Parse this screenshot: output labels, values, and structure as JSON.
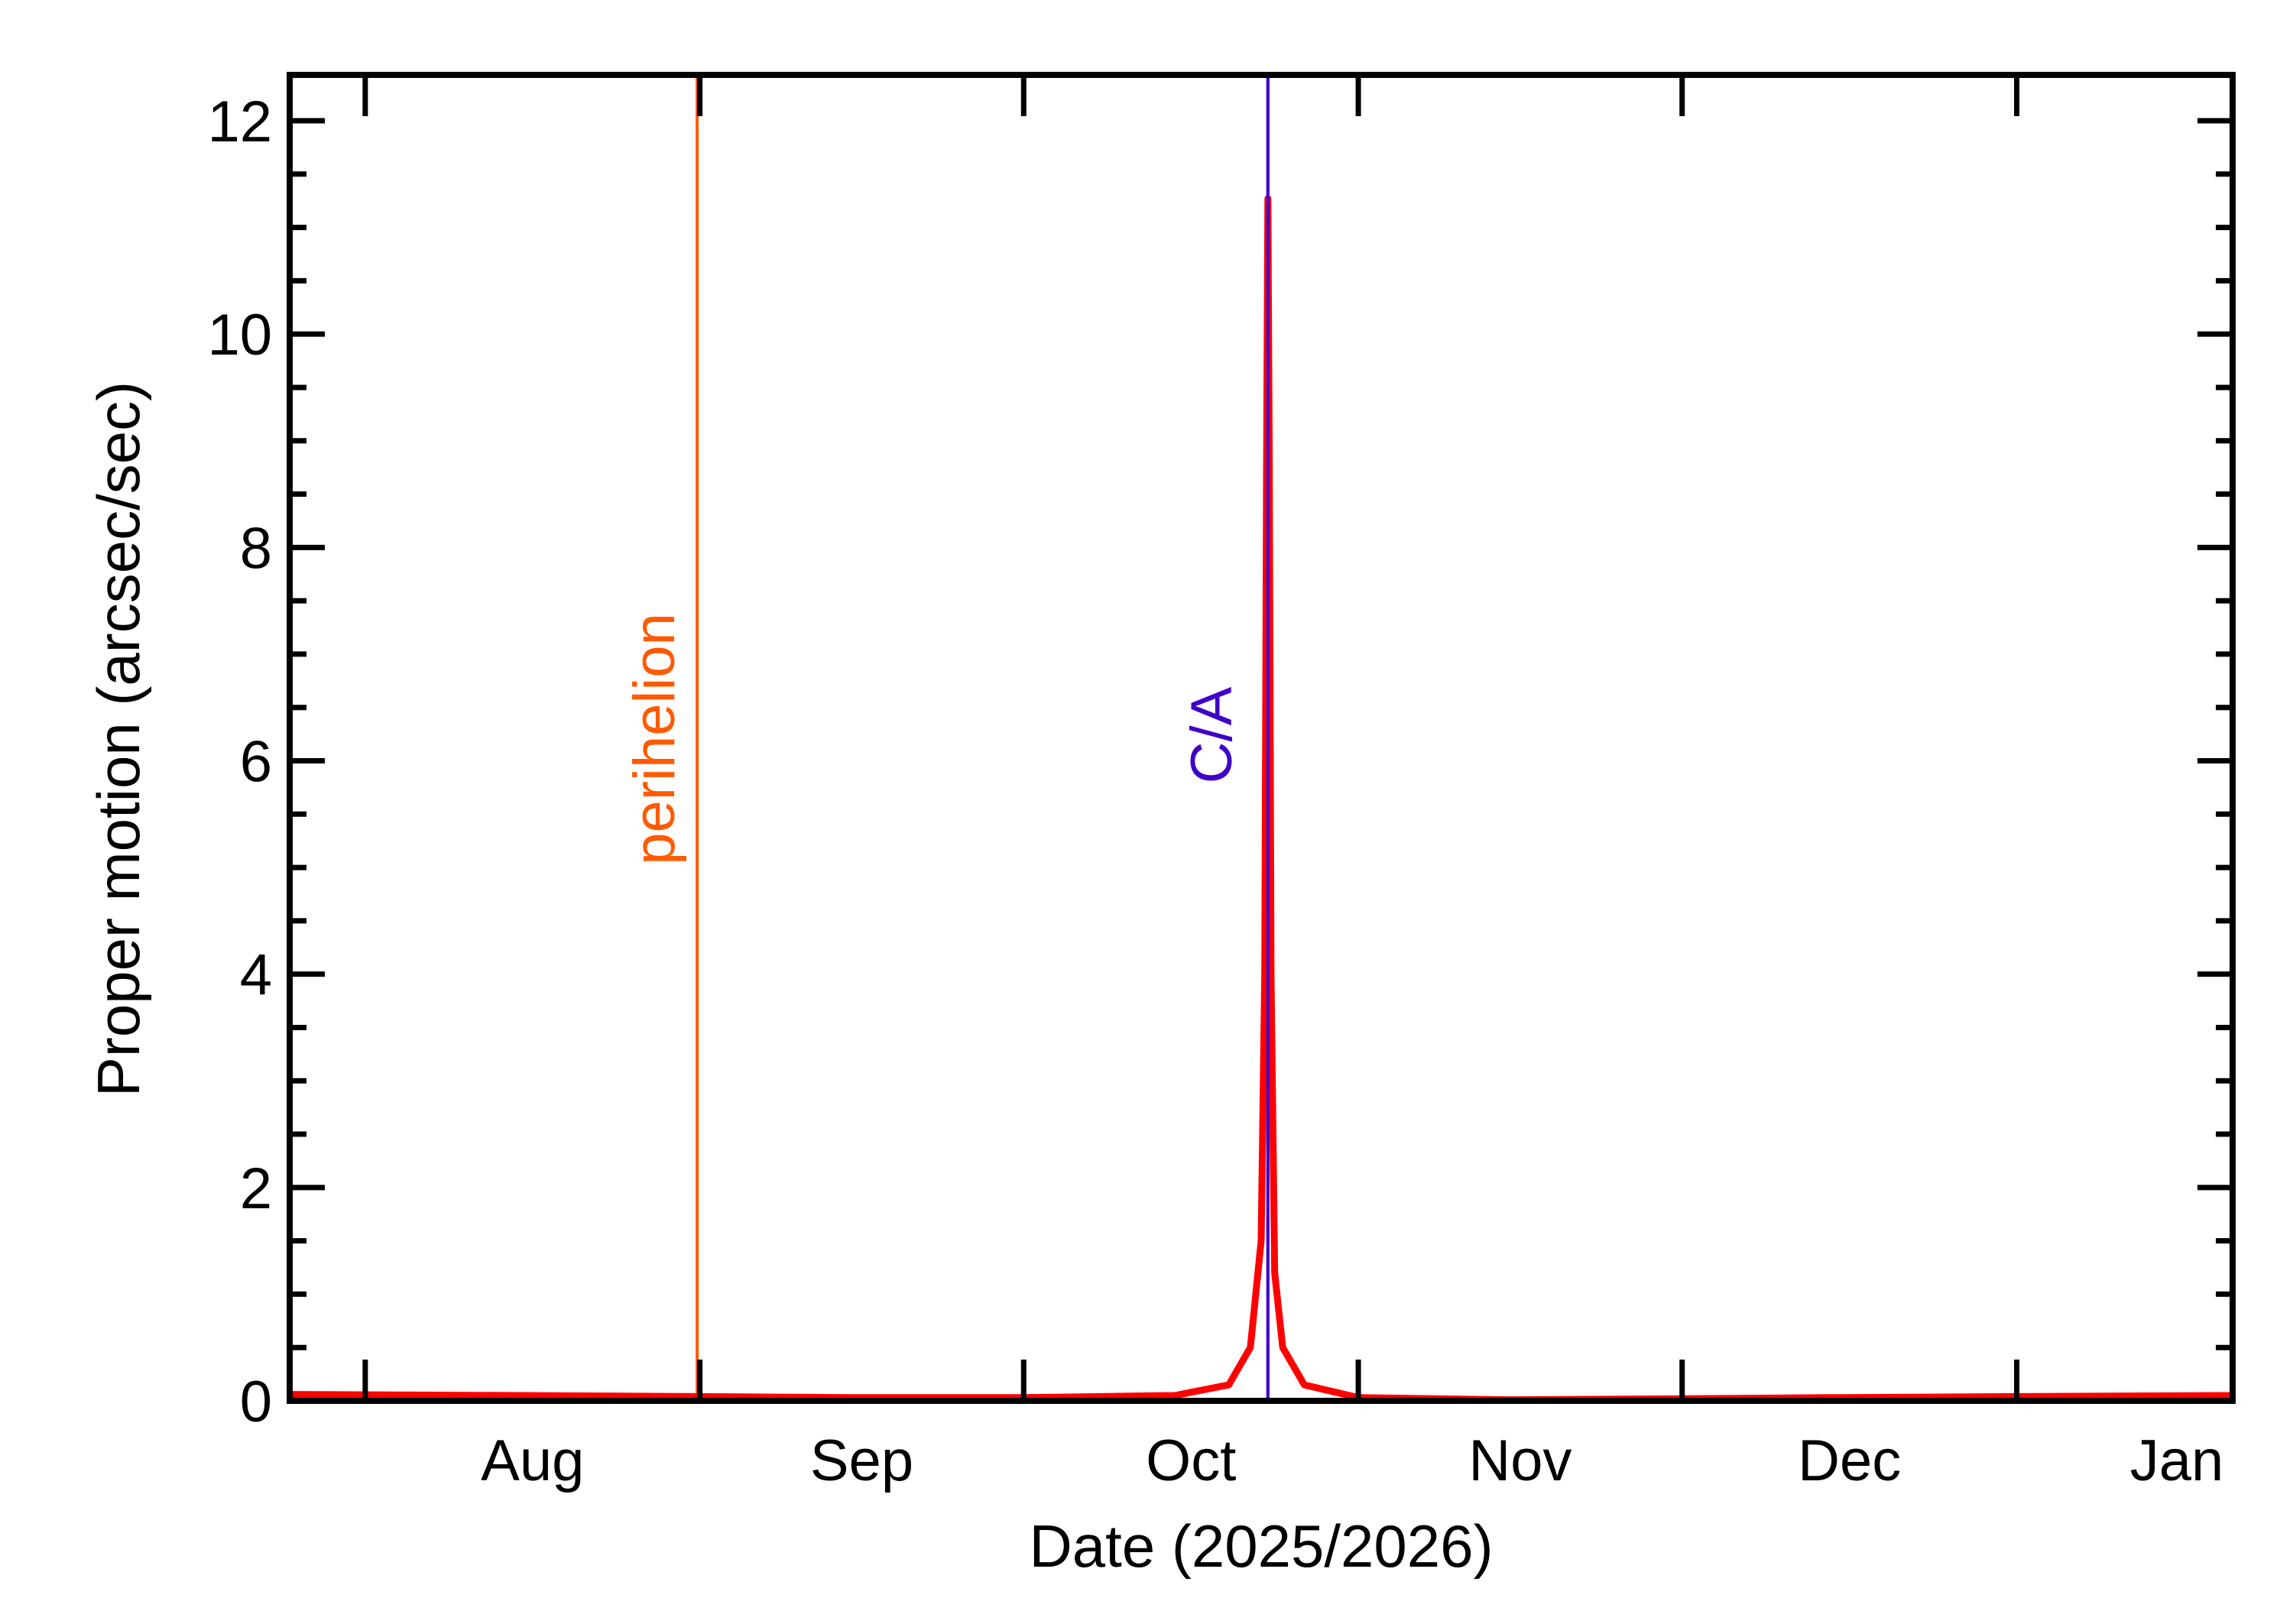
{
  "chart_data": {
    "type": "line",
    "title": "",
    "xlabel": "Date (2025/2026)",
    "ylabel": "Proper motion (arcsec/sec)",
    "xlim": [
      "2025-07-25",
      "2026-01-21"
    ],
    "ylim": [
      0,
      12.43
    ],
    "grid": false,
    "x_ticks": [
      {
        "date": "2025-08-01",
        "label": "Aug"
      },
      {
        "date": "2025-09-01",
        "label": "Sep"
      },
      {
        "date": "2025-10-01",
        "label": "Oct"
      },
      {
        "date": "2025-11-01",
        "label": "Nov"
      },
      {
        "date": "2025-12-01",
        "label": "Dec"
      },
      {
        "date": "2026-01-01",
        "label": "Jan"
      }
    ],
    "y_ticks": [
      0,
      2,
      4,
      6,
      8,
      10,
      12
    ],
    "y_minor_step": 0.5,
    "series": [
      {
        "color": "#ff0000",
        "points": [
          [
            "2025-07-25T00:00",
            0.06
          ],
          [
            "2025-08-15T00:00",
            0.05
          ],
          [
            "2025-09-01T00:00",
            0.04
          ],
          [
            "2025-09-15T00:00",
            0.03
          ],
          [
            "2025-10-01T00:00",
            0.03
          ],
          [
            "2025-10-15T00:00",
            0.05
          ],
          [
            "2025-10-20T00:00",
            0.15
          ],
          [
            "2025-10-22T00:00",
            0.5
          ],
          [
            "2025-10-23T00:00",
            1.5
          ],
          [
            "2025-10-23T08:00",
            4.0
          ],
          [
            "2025-10-23T12:00",
            8.8
          ],
          [
            "2025-10-23T15:00",
            11.27
          ],
          [
            "2025-10-23T18:00",
            8.8
          ],
          [
            "2025-10-23T22:00",
            4.0
          ],
          [
            "2025-10-24T06:00",
            1.2
          ],
          [
            "2025-10-25T00:00",
            0.5
          ],
          [
            "2025-10-27T00:00",
            0.15
          ],
          [
            "2025-11-01T00:00",
            0.03
          ],
          [
            "2025-11-15T00:00",
            0.01
          ],
          [
            "2025-12-01T00:00",
            0.02
          ],
          [
            "2025-12-15T00:00",
            0.03
          ],
          [
            "2026-01-01T00:00",
            0.04
          ],
          [
            "2026-01-21T00:00",
            0.05
          ]
        ]
      }
    ],
    "annotations": [
      {
        "label": "perihelion",
        "date": "2025-08-31T18:00",
        "color": "#ff5a00"
      },
      {
        "label": "C/A",
        "date": "2025-10-23T15:00",
        "color": "#4000c8"
      }
    ]
  }
}
